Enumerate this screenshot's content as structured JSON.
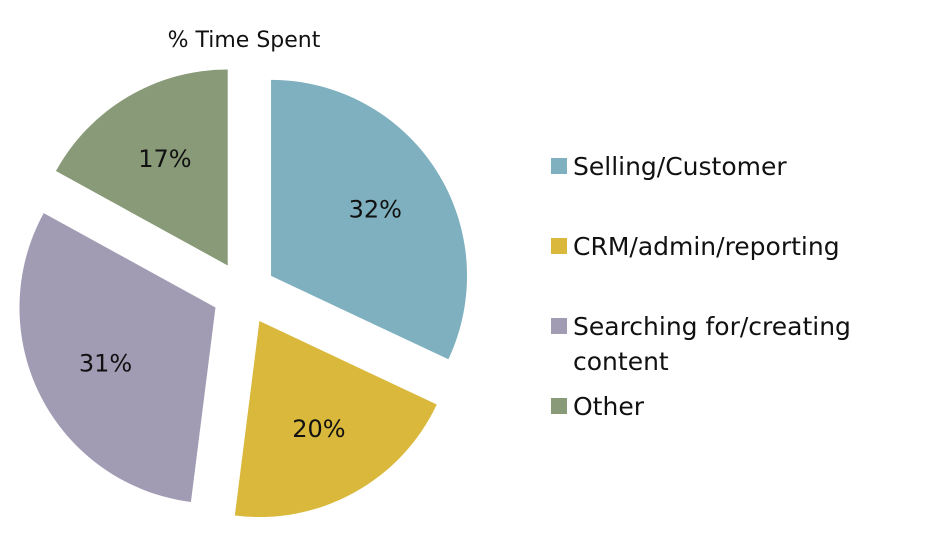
{
  "chart_data": {
    "type": "pie",
    "title": "% Time Spent",
    "slices": [
      {
        "name": "Selling/Customer",
        "value": 32,
        "label": "32%",
        "color": "#7fb0bf"
      },
      {
        "name": "CRM/admin/reporting",
        "value": 20,
        "label": "20%",
        "color": "#d9b83c"
      },
      {
        "name": "Searching for/creating content",
        "value": 31,
        "label": "31%",
        "color": "#a19cb4"
      },
      {
        "name": "Other",
        "value": 17,
        "label": "17%",
        "color": "#889a77"
      }
    ],
    "exploded": true,
    "legend": {
      "position": "right",
      "lines": [
        [
          "Selling/Customer"
        ],
        [
          "CRM/admin/reporting"
        ],
        [
          "Searching for/creating",
          "content"
        ],
        [
          "Other"
        ]
      ]
    }
  }
}
